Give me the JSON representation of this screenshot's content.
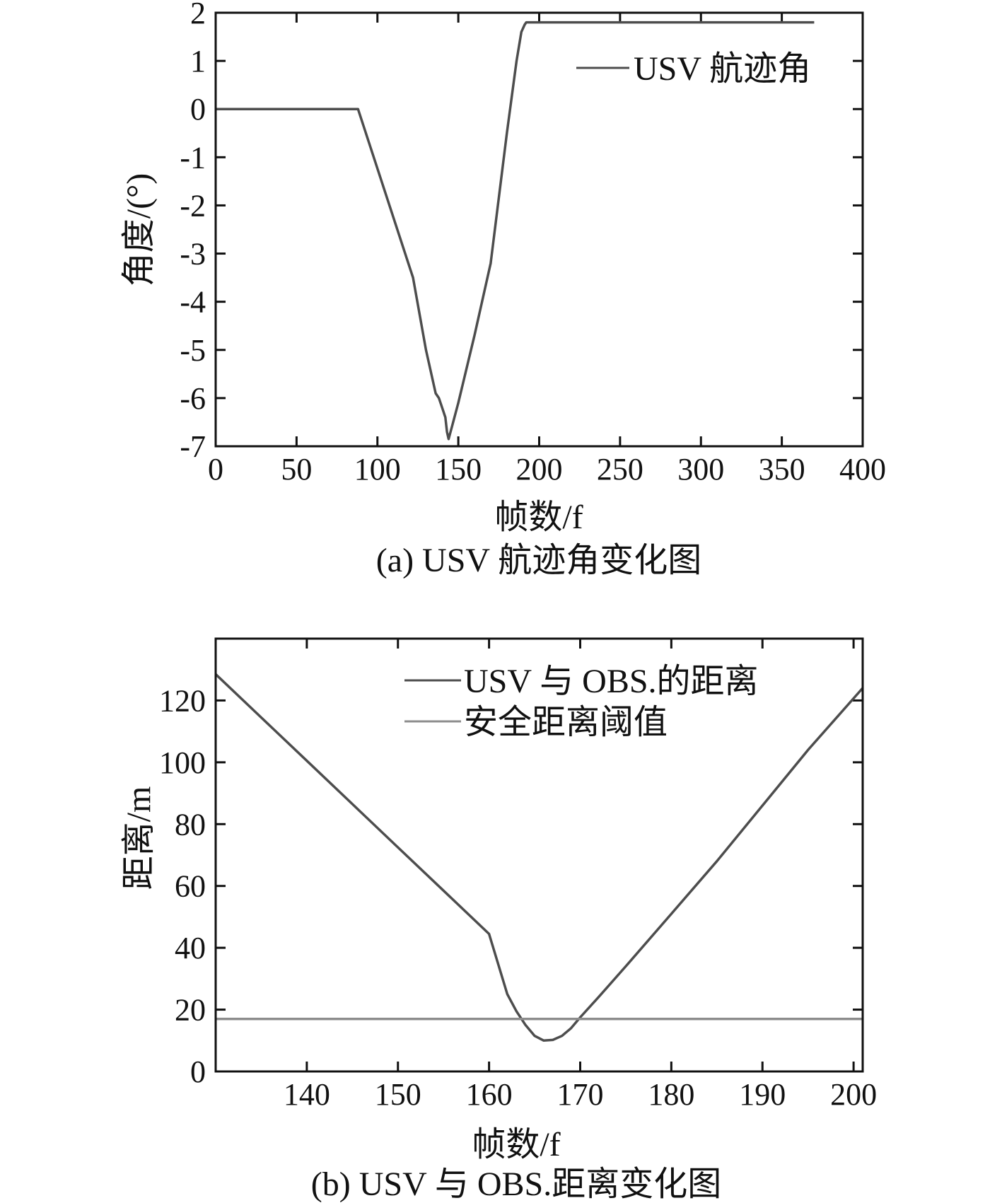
{
  "chart_data": [
    {
      "id": "a",
      "type": "line",
      "caption": "(a) USV 航迹角变化图",
      "xlabel": "帧数/f",
      "ylabel": "角度/(°)",
      "xlim": [
        0,
        400
      ],
      "ylim": [
        -7,
        2
      ],
      "xticks": [
        0,
        50,
        100,
        150,
        200,
        250,
        300,
        350,
        400
      ],
      "yticks": [
        2,
        1,
        0,
        -1,
        -2,
        -3,
        -4,
        -5,
        -6,
        -7
      ],
      "yticklabels": [
        "2",
        "1",
        "0",
        "-1",
        "-2",
        "-3",
        "-4",
        "-5",
        "-6",
        "-7"
      ],
      "legend": {
        "position": "top-right"
      },
      "series": [
        {
          "name": "USV 航迹角",
          "color": "#4d4d4d",
          "x": [
            0,
            88,
            122,
            130,
            136,
            138,
            140,
            142,
            143,
            144,
            146,
            150,
            160,
            170,
            180,
            186,
            189,
            191,
            192,
            193,
            370
          ],
          "y": [
            0,
            0,
            -3.5,
            -5.0,
            -5.9,
            -6.0,
            -6.2,
            -6.4,
            -6.7,
            -6.85,
            -6.6,
            -6.1,
            -4.7,
            -3.2,
            -0.5,
            1.0,
            1.6,
            1.75,
            1.8,
            1.8,
            1.8
          ]
        }
      ]
    },
    {
      "id": "b",
      "type": "line",
      "caption": "(b) USV 与 OBS.距离变化图",
      "xlabel": "帧数/f",
      "ylabel": "距离/m",
      "xlim": [
        130,
        201
      ],
      "ylim": [
        0,
        140
      ],
      "xticks": [
        140,
        150,
        160,
        170,
        180,
        190,
        200
      ],
      "yticks": [
        0,
        20,
        40,
        60,
        80,
        100,
        120
      ],
      "legend": {
        "position": "top-right"
      },
      "series": [
        {
          "name": "USV 与 OBS.的距离",
          "color": "#4d4d4d",
          "x": [
            130,
            135,
            140,
            145,
            150,
            155,
            160,
            162,
            163,
            164,
            165,
            166,
            167,
            168,
            169,
            170,
            172,
            175,
            180,
            185,
            190,
            195,
            201
          ],
          "y": [
            128.5,
            114.5,
            100.5,
            86.5,
            72.5,
            58.5,
            44.5,
            25,
            19.5,
            15,
            11.5,
            10,
            10.2,
            11.5,
            14,
            17.5,
            24,
            34,
            51,
            68,
            86,
            104,
            124
          ]
        },
        {
          "name": "安全距离阈值",
          "color": "#8c8c8c",
          "x": [
            130,
            201
          ],
          "y": [
            17,
            17
          ]
        }
      ]
    }
  ]
}
